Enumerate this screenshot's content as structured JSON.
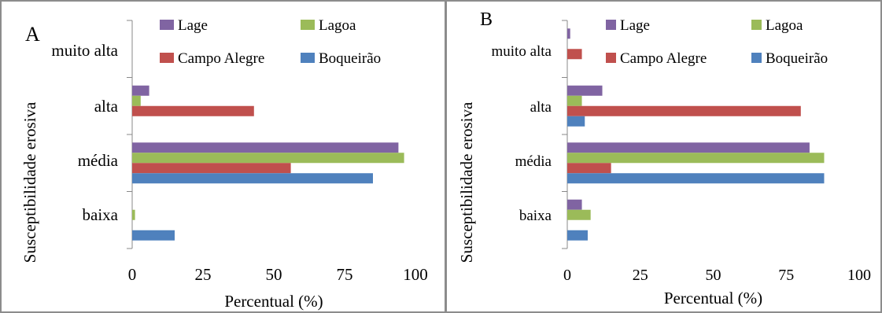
{
  "chart_data": [
    {
      "type": "bar",
      "orientation": "horizontal",
      "panel_label": "A",
      "categories": [
        "baixa",
        "média",
        "alta",
        "muito alta"
      ],
      "series": [
        {
          "name": "Boqueirão",
          "color": "#4f81bd",
          "values": [
            15,
            85,
            0,
            0
          ]
        },
        {
          "name": "Campo Alegre",
          "color": "#c0504d",
          "values": [
            0,
            56,
            43,
            0
          ]
        },
        {
          "name": "Lagoa",
          "color": "#9bbb59",
          "values": [
            1,
            96,
            3,
            0
          ]
        },
        {
          "name": "Lage",
          "color": "#8064a2",
          "values": [
            0,
            94,
            6,
            0
          ]
        }
      ],
      "xlabel": "Percentual (%)",
      "ylabel": "Susceptibilidade erosiva",
      "xlim": [
        0,
        100
      ],
      "xticks": [
        "0",
        "25",
        "50",
        "75",
        "100"
      ],
      "legend": "top",
      "grid": false
    },
    {
      "type": "bar",
      "orientation": "horizontal",
      "panel_label": "B",
      "categories": [
        "baixa",
        "média",
        "alta",
        "muito alta"
      ],
      "series": [
        {
          "name": "Boqueirão",
          "color": "#4f81bd",
          "values": [
            7,
            88,
            6,
            0
          ]
        },
        {
          "name": "Campo Alegre",
          "color": "#c0504d",
          "values": [
            0,
            15,
            80,
            5
          ]
        },
        {
          "name": "Lagoa",
          "color": "#9bbb59",
          "values": [
            8,
            88,
            5,
            0
          ]
        },
        {
          "name": "Lage",
          "color": "#8064a2",
          "values": [
            5,
            83,
            12,
            1
          ]
        }
      ],
      "xlabel": "Percentual (%)",
      "ylabel": "Susceptibilidade erosiva",
      "xlim": [
        0,
        100
      ],
      "xticks": [
        "0",
        "25",
        "50",
        "75",
        "100"
      ],
      "legend": "top",
      "grid": false
    }
  ]
}
